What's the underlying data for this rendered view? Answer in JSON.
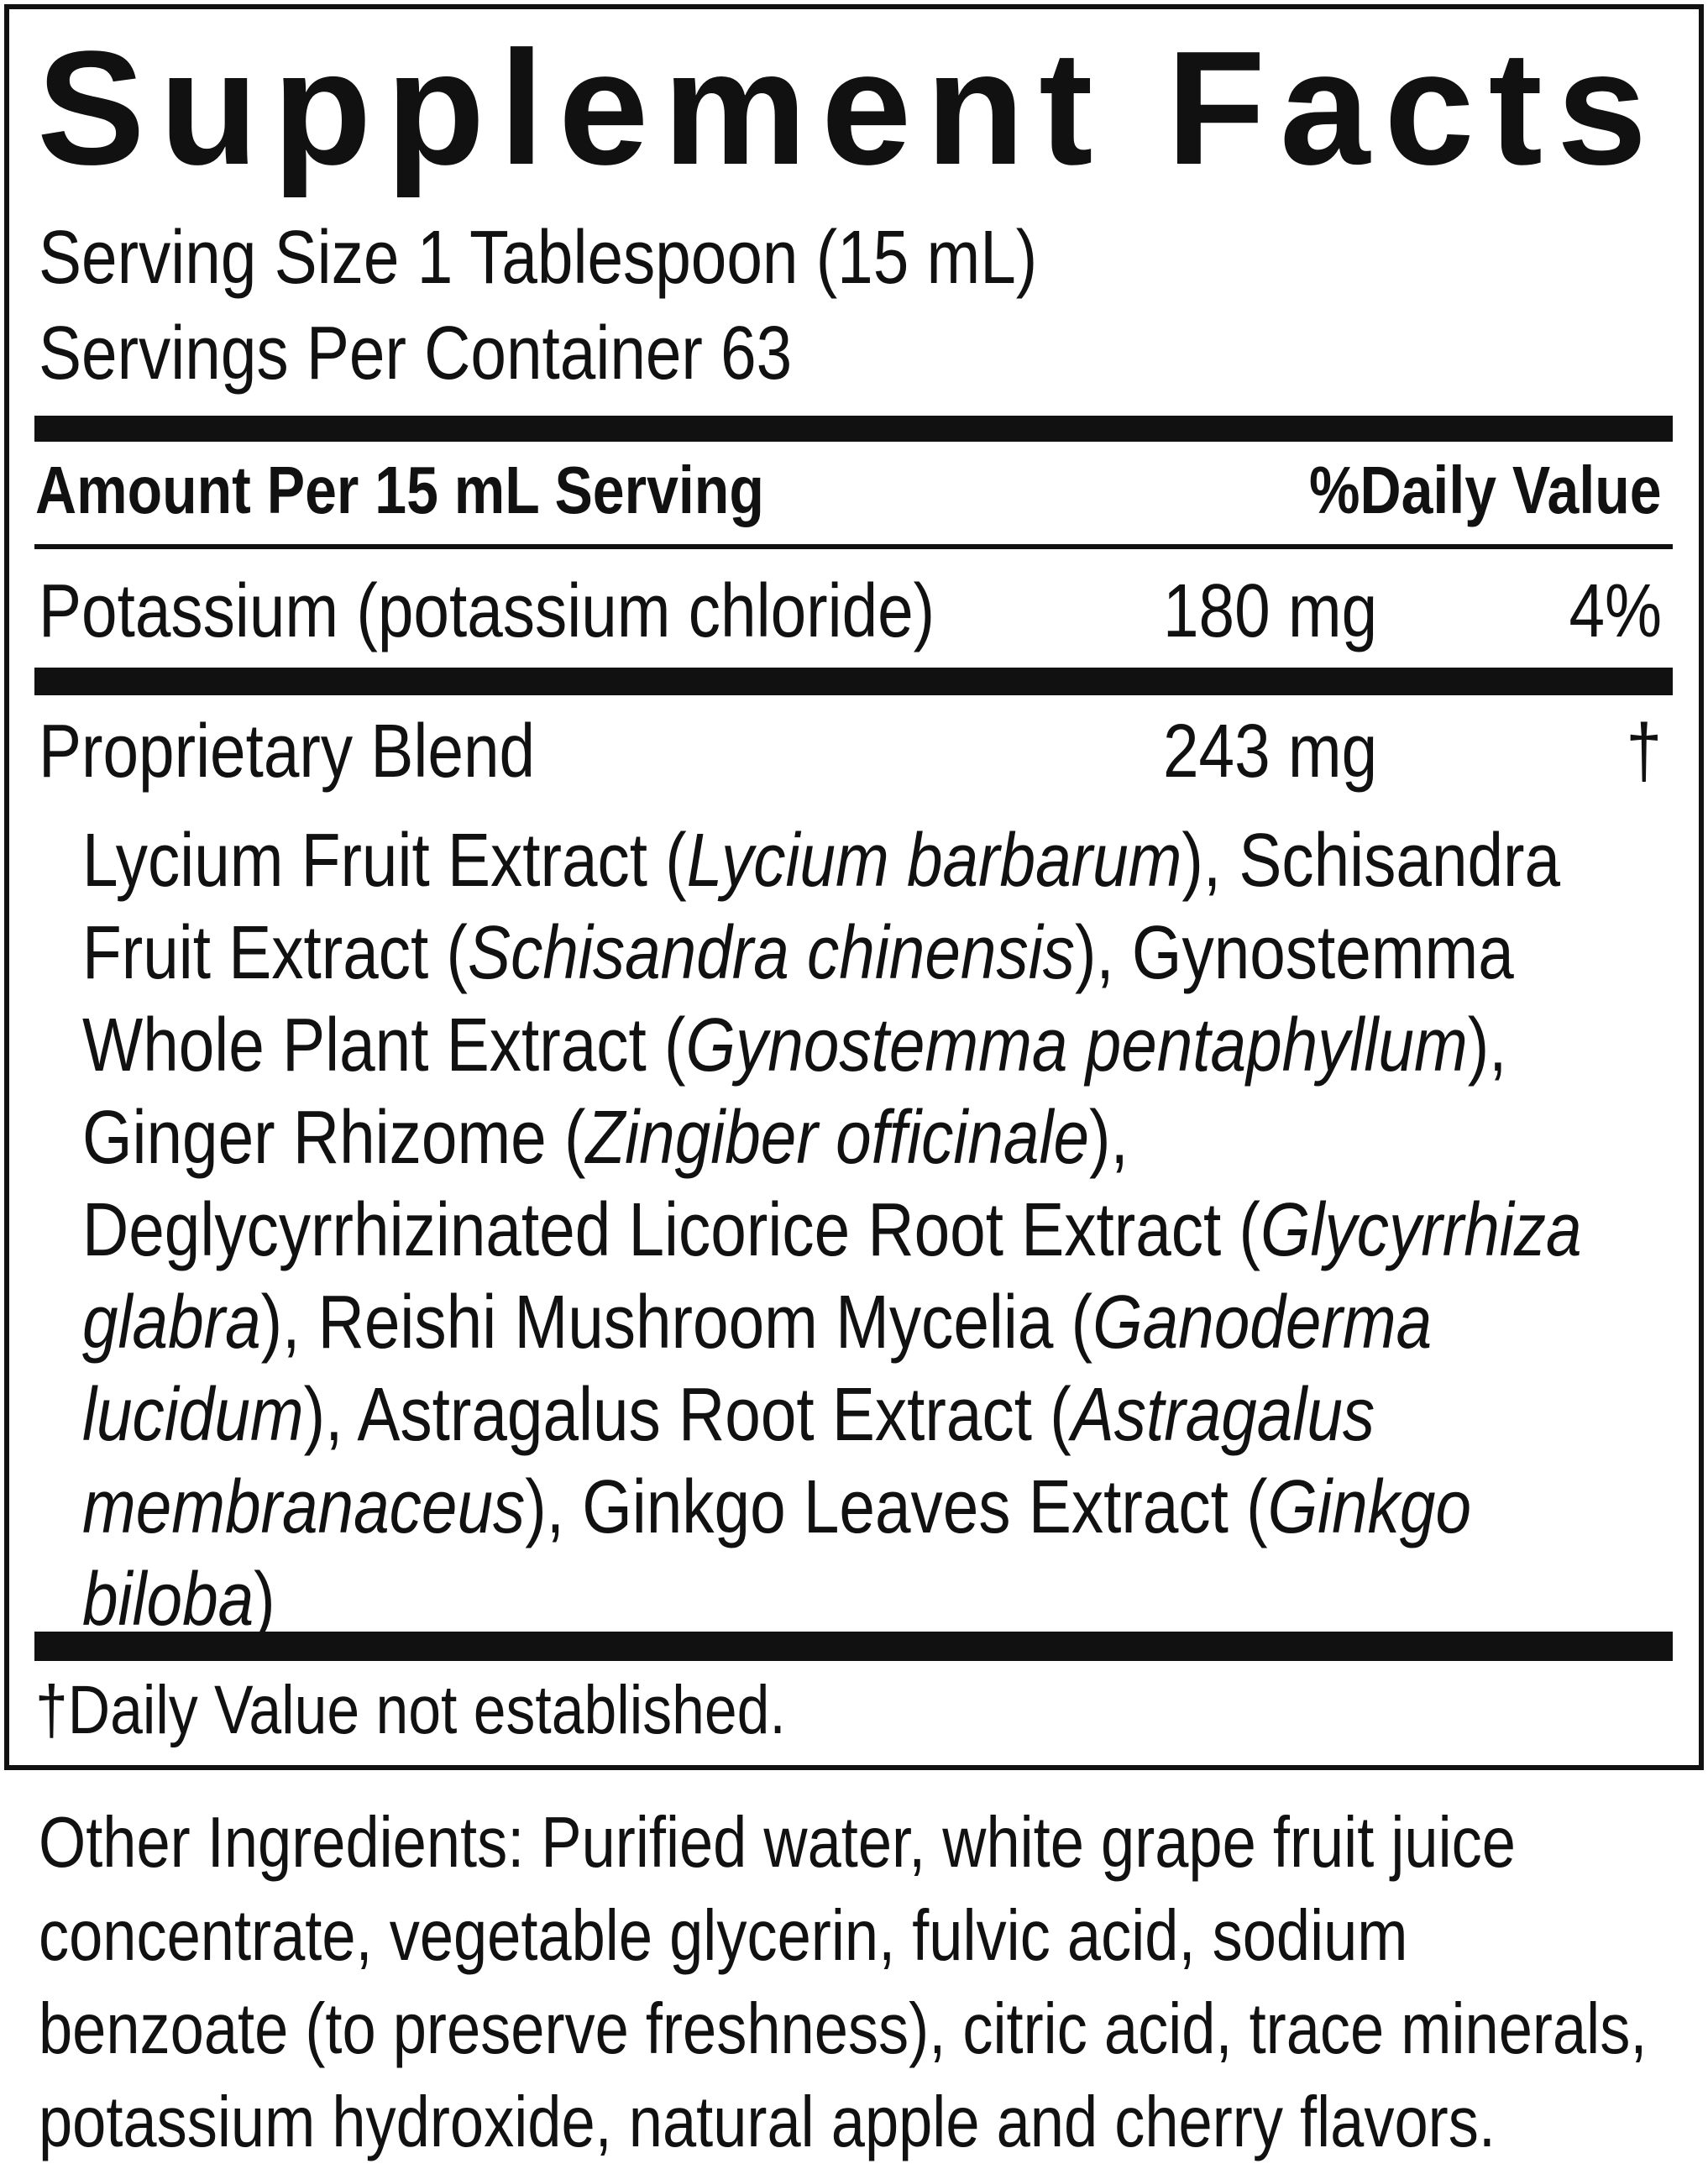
{
  "title": "Supplement Facts",
  "serving_size": "Serving Size 1 Tablespoon (15 mL)",
  "servings_per_container": "Servings Per Container 63",
  "header": {
    "amount": "Amount Per 15 mL Serving",
    "daily_value": "%Daily Value"
  },
  "rows": [
    {
      "name": "Potassium (potassium chloride)",
      "amount": "180 mg",
      "daily_value": "4%"
    },
    {
      "name": "Proprietary Blend",
      "amount": "243 mg",
      "daily_value": "†"
    }
  ],
  "blend_text": [
    {
      "text": "Lycium Fruit Extract ("
    },
    {
      "text": "Lycium barbarum",
      "italic": true
    },
    {
      "text": "), Schisandra Fruit Extract ("
    },
    {
      "text": "Schisandra chinensis",
      "italic": true
    },
    {
      "text": "), Gynostemma Whole Plant Extract ("
    },
    {
      "text": "Gynostemma pentaphyllum",
      "italic": true
    },
    {
      "text": "), Ginger Rhizome ("
    },
    {
      "text": "Zingiber officinale",
      "italic": true
    },
    {
      "text": "), Deglycyrrhizinated Licorice Root Extract ("
    },
    {
      "text": "Glycyrrhiza glabra",
      "italic": true
    },
    {
      "text": "), Reishi Mushroom Mycelia ("
    },
    {
      "text": "Ganoderma lucidum",
      "italic": true
    },
    {
      "text": "), Astragalus Root Extract ("
    },
    {
      "text": "Astragalus membranaceus",
      "italic": true
    },
    {
      "text": "), Ginkgo Leaves Extract ("
    },
    {
      "text": "Ginkgo biloba",
      "italic": true
    },
    {
      "text": ")"
    }
  ],
  "footnote": "†Daily Value not established.",
  "other_ingredients": "Other Ingredients: Purified water, white grape fruit juice concentrate, vegetable glycerin, fulvic acid, sodium benzoate (to preserve freshness), citric acid, trace minerals, potassium hydroxide, natural apple and cherry flavors."
}
